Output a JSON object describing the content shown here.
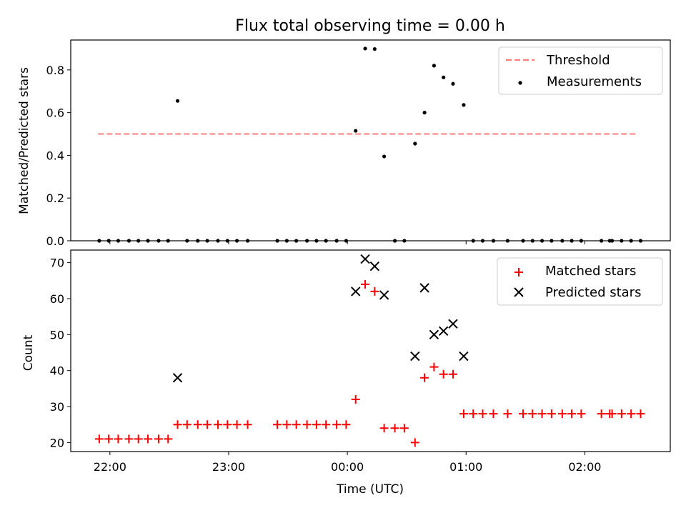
{
  "chart_data": {
    "title": "Flux total observing time = 0.00 h",
    "xlabel": "Time (UTC)",
    "x_ticks": [
      "22:00",
      "23:00",
      "00:00",
      "01:00",
      "02:00"
    ],
    "x_tick_hours": [
      0,
      1,
      2,
      3,
      4
    ],
    "x_origin": "22:00",
    "xlim": [
      -0.33,
      4.72
    ],
    "grid": false,
    "top": {
      "type": "scatter",
      "ylabel": "Matched/Predicted stars",
      "ylim": [
        0,
        0.94
      ],
      "y_ticks": [
        "0.0",
        "0.2",
        "0.4",
        "0.6",
        "0.8"
      ],
      "y_tick_values": [
        0,
        0.2,
        0.4,
        0.6,
        0.8
      ],
      "legend_position": "top-right",
      "series": [
        {
          "name": "Threshold",
          "style": "dashed-line",
          "color": "#ff7f7f",
          "points": [
            [
              -0.1,
              0.5
            ],
            [
              4.45,
              0.5
            ]
          ]
        },
        {
          "name": "Measurements",
          "style": "dot",
          "color": "#000000",
          "points": [
            [
              -0.09,
              0
            ],
            [
              -0.01,
              0
            ],
            [
              0.07,
              0
            ],
            [
              0.16,
              0
            ],
            [
              0.24,
              0
            ],
            [
              0.32,
              0
            ],
            [
              0.41,
              0
            ],
            [
              0.49,
              0
            ],
            [
              0.57,
              0.655
            ],
            [
              0.65,
              0
            ],
            [
              0.74,
              0
            ],
            [
              0.82,
              0
            ],
            [
              0.91,
              0
            ],
            [
              0.99,
              0
            ],
            [
              1.07,
              0
            ],
            [
              1.16,
              0
            ],
            [
              1.41,
              0
            ],
            [
              1.49,
              0
            ],
            [
              1.57,
              0
            ],
            [
              1.66,
              0
            ],
            [
              1.74,
              0
            ],
            [
              1.82,
              0
            ],
            [
              1.91,
              0
            ],
            [
              1.99,
              0
            ],
            [
              2.07,
              0.515
            ],
            [
              2.15,
              0.9
            ],
            [
              2.23,
              0.898
            ],
            [
              2.31,
              0.395
            ],
            [
              2.4,
              0
            ],
            [
              2.48,
              0
            ],
            [
              2.57,
              0.455
            ],
            [
              2.65,
              0.6
            ],
            [
              2.73,
              0.82
            ],
            [
              2.81,
              0.765
            ],
            [
              2.89,
              0.735
            ],
            [
              2.98,
              0.636
            ],
            [
              3.06,
              0
            ],
            [
              3.14,
              0
            ],
            [
              3.23,
              0
            ],
            [
              3.35,
              0
            ],
            [
              3.48,
              0
            ],
            [
              3.56,
              0
            ],
            [
              3.64,
              0
            ],
            [
              3.72,
              0
            ],
            [
              3.81,
              0
            ],
            [
              3.89,
              0
            ],
            [
              3.97,
              0
            ],
            [
              4.14,
              0
            ],
            [
              4.21,
              0
            ],
            [
              4.23,
              0
            ],
            [
              4.31,
              0
            ],
            [
              4.39,
              0
            ],
            [
              4.47,
              0
            ]
          ]
        }
      ]
    },
    "bottom": {
      "type": "scatter",
      "ylabel": "Count",
      "ylim": [
        17.5,
        73.5
      ],
      "y_ticks": [
        "20",
        "30",
        "40",
        "50",
        "60",
        "70"
      ],
      "y_tick_values": [
        20,
        30,
        40,
        50,
        60,
        70
      ],
      "legend_position": "top-right",
      "series": [
        {
          "name": "Matched stars",
          "style": "plus",
          "color": "#ff0000",
          "points": [
            [
              -0.09,
              21
            ],
            [
              -0.01,
              21
            ],
            [
              0.07,
              21
            ],
            [
              0.16,
              21
            ],
            [
              0.24,
              21
            ],
            [
              0.32,
              21
            ],
            [
              0.41,
              21
            ],
            [
              0.49,
              21
            ],
            [
              0.57,
              25
            ],
            [
              0.65,
              25
            ],
            [
              0.74,
              25
            ],
            [
              0.82,
              25
            ],
            [
              0.91,
              25
            ],
            [
              0.99,
              25
            ],
            [
              1.07,
              25
            ],
            [
              1.16,
              25
            ],
            [
              1.41,
              25
            ],
            [
              1.49,
              25
            ],
            [
              1.57,
              25
            ],
            [
              1.66,
              25
            ],
            [
              1.74,
              25
            ],
            [
              1.82,
              25
            ],
            [
              1.91,
              25
            ],
            [
              1.99,
              25
            ],
            [
              2.07,
              32
            ],
            [
              2.15,
              64
            ],
            [
              2.23,
              62
            ],
            [
              2.31,
              24
            ],
            [
              2.4,
              24
            ],
            [
              2.48,
              24
            ],
            [
              2.57,
              20
            ],
            [
              2.65,
              38
            ],
            [
              2.73,
              41
            ],
            [
              2.81,
              39
            ],
            [
              2.89,
              39
            ],
            [
              2.98,
              28
            ],
            [
              3.06,
              28
            ],
            [
              3.14,
              28
            ],
            [
              3.23,
              28
            ],
            [
              3.35,
              28
            ],
            [
              3.48,
              28
            ],
            [
              3.56,
              28
            ],
            [
              3.64,
              28
            ],
            [
              3.72,
              28
            ],
            [
              3.81,
              28
            ],
            [
              3.89,
              28
            ],
            [
              3.97,
              28
            ],
            [
              4.14,
              28
            ],
            [
              4.21,
              28
            ],
            [
              4.23,
              28
            ],
            [
              4.31,
              28
            ],
            [
              4.39,
              28
            ],
            [
              4.47,
              28
            ]
          ]
        },
        {
          "name": "Predicted stars",
          "style": "x",
          "color": "#000000",
          "points": [
            [
              0.57,
              38
            ],
            [
              2.07,
              62
            ],
            [
              2.15,
              71
            ],
            [
              2.23,
              69
            ],
            [
              2.31,
              61
            ],
            [
              2.57,
              44
            ],
            [
              2.65,
              63
            ],
            [
              2.73,
              50
            ],
            [
              2.81,
              51
            ],
            [
              2.89,
              53
            ],
            [
              2.98,
              44
            ]
          ]
        }
      ]
    }
  }
}
